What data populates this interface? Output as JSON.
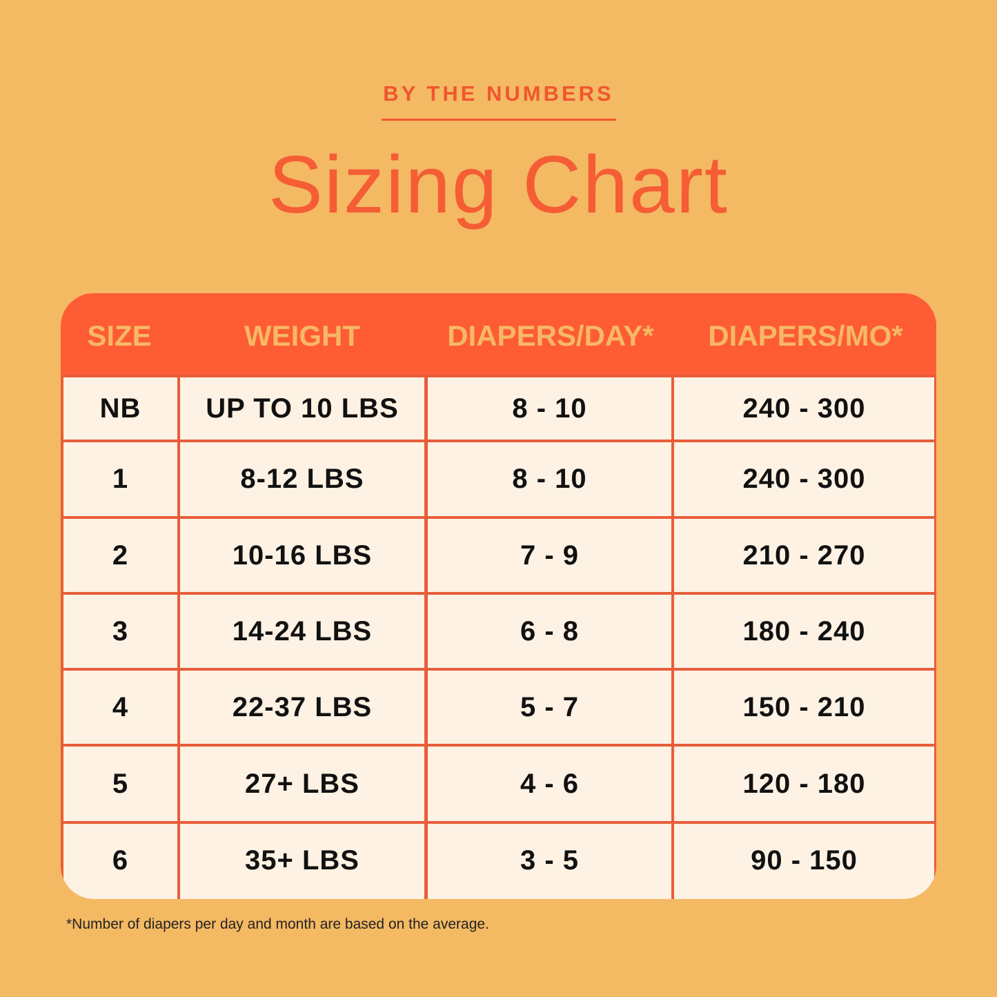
{
  "kicker": "BY THE NUMBERS",
  "title": "Sizing Chart",
  "table": {
    "headers": [
      "SIZE",
      "WEIGHT",
      "DIAPERS/DAY*",
      "DIAPERS/MO*"
    ],
    "rows": [
      [
        "NB",
        "UP TO 10 LBS",
        "8 - 10",
        "240 - 300"
      ],
      [
        "1",
        "8-12 LBS",
        "8 - 10",
        "240 - 300"
      ],
      [
        "2",
        "10-16 LBS",
        "7 - 9",
        "210 - 270"
      ],
      [
        "3",
        "14-24 LBS",
        "6 - 8",
        "180 - 240"
      ],
      [
        "4",
        "22-37 LBS",
        "5 - 7",
        "150 - 210"
      ],
      [
        "5",
        "27+ LBS",
        "4 - 6",
        "120 - 180"
      ],
      [
        "6",
        "35+ LBS",
        "3 - 5",
        "90 - 150"
      ]
    ]
  },
  "footnote": "*Number of diapers per day and month are based on the average.",
  "colors": {
    "background": "#f4b963",
    "accent": "#fe5c35",
    "cell": "#fdf2e3"
  }
}
